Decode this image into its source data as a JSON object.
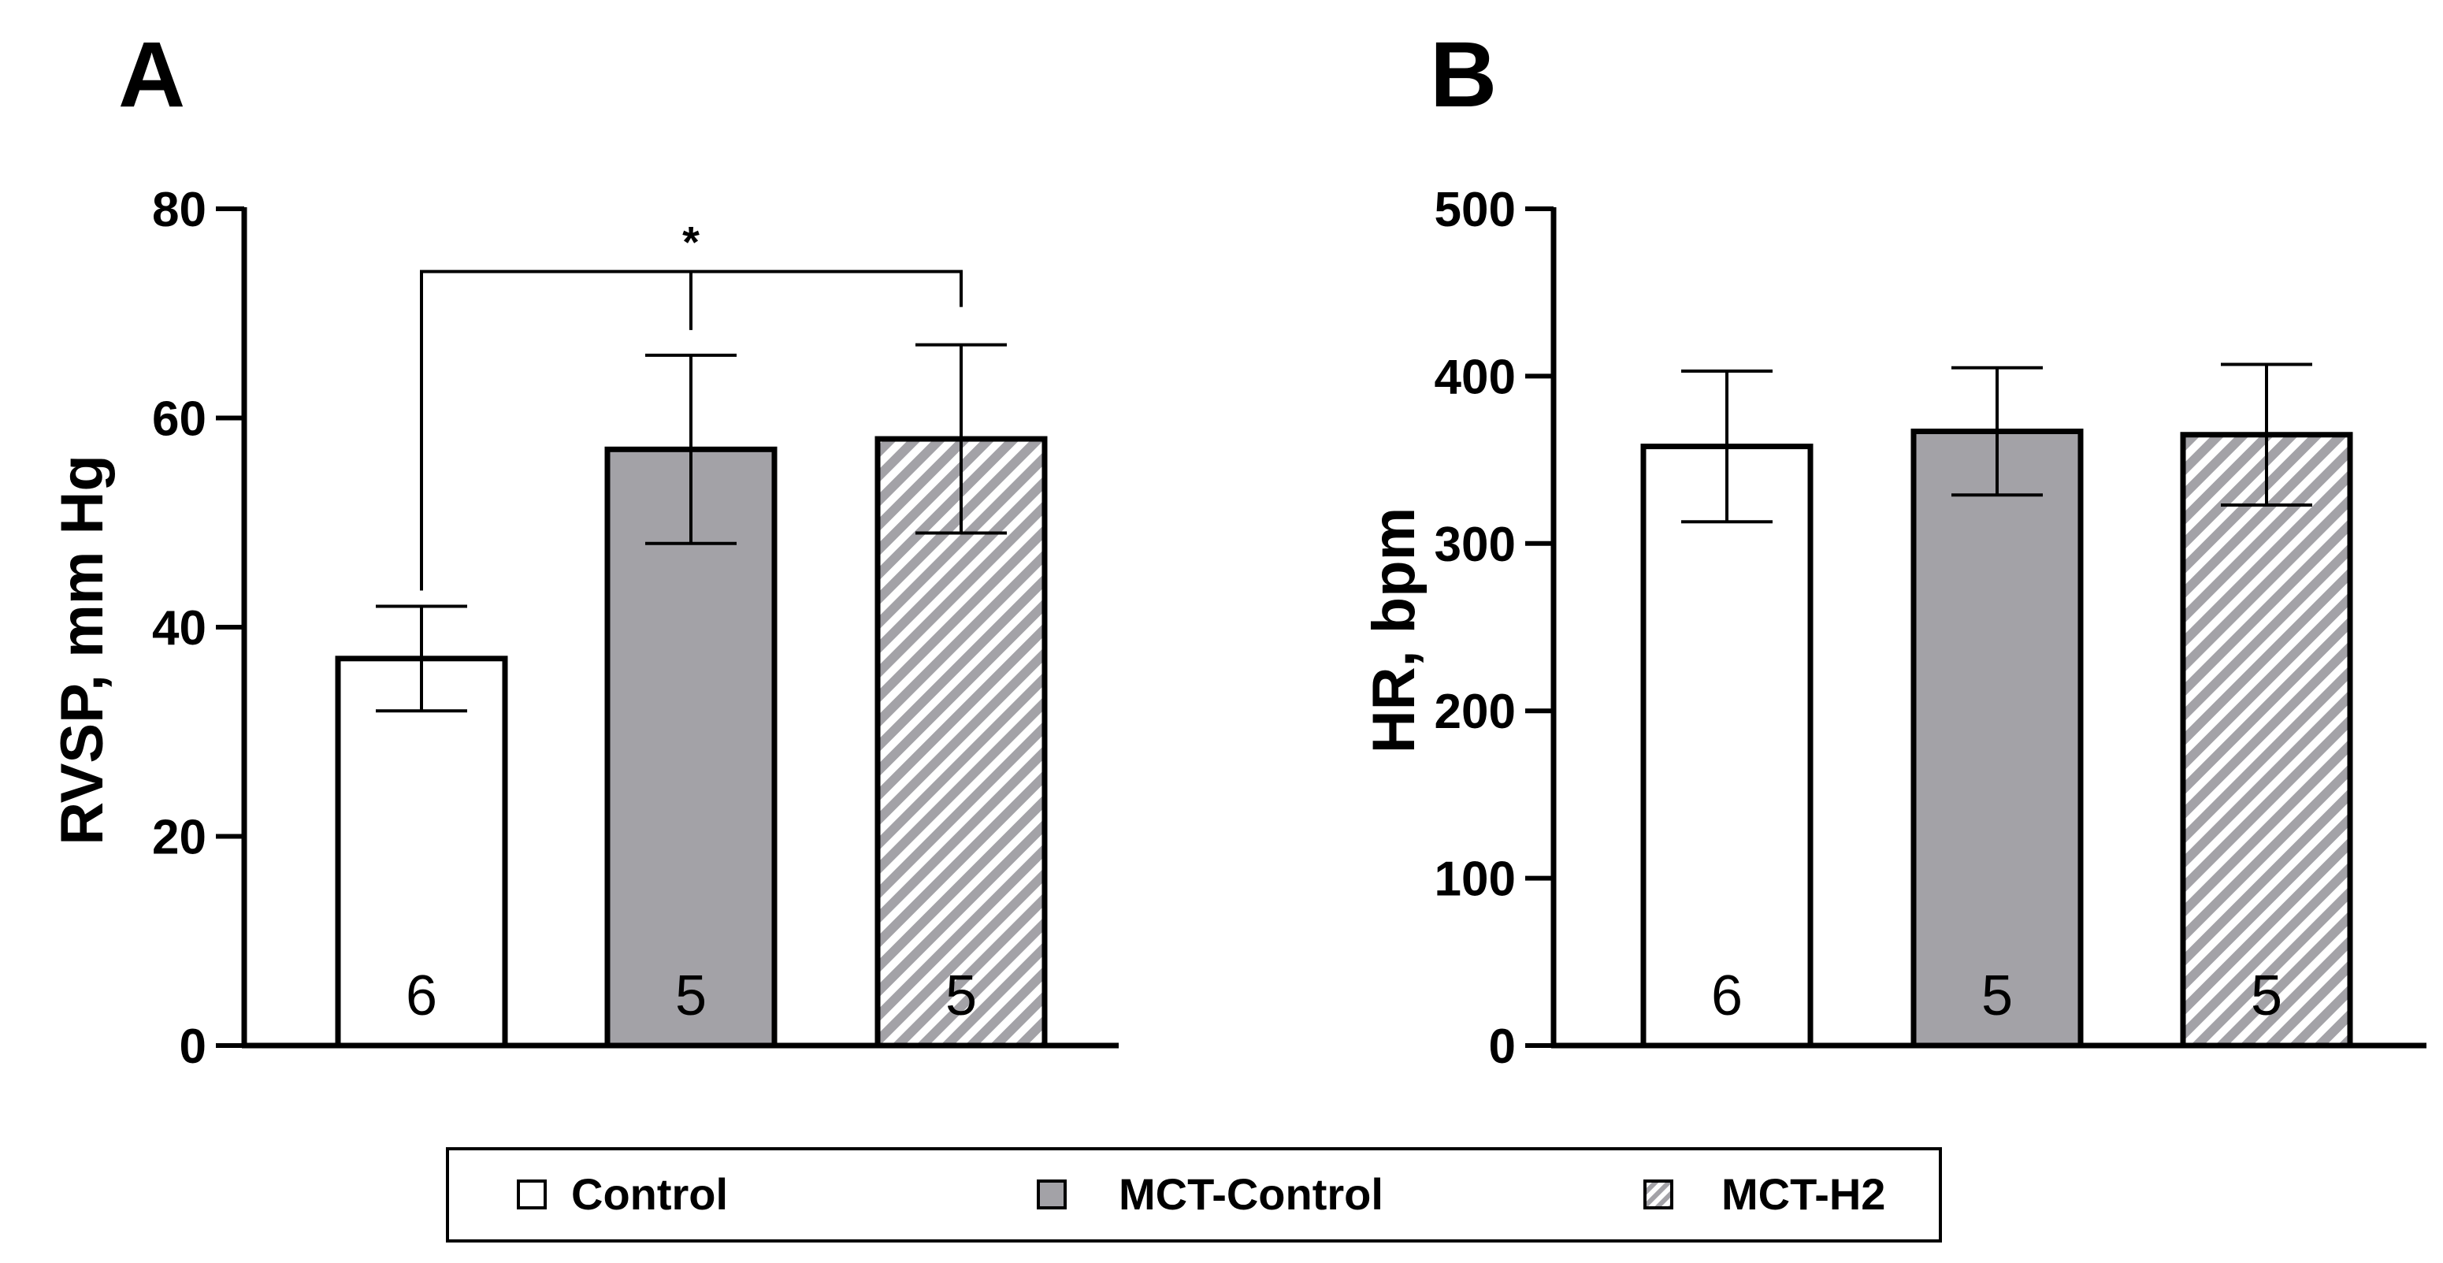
{
  "colors": {
    "control": "#ffffff",
    "mct_control": "#a3a2a7",
    "mct_h2_stripe": "#a3a2a7",
    "axis": "#000000"
  },
  "legend": {
    "items": [
      {
        "label": "Control",
        "fill": "solid-white"
      },
      {
        "label": "MCT-Control",
        "fill": "solid-gray"
      },
      {
        "label": "MCT-H2",
        "fill": "hatched"
      }
    ]
  },
  "chart_data": [
    {
      "panel": "A",
      "type": "bar",
      "categories": [
        "Control",
        "MCT-Control",
        "MCT-H2"
      ],
      "values": [
        37,
        57,
        58
      ],
      "errors": [
        5,
        9,
        9
      ],
      "n": [
        "6",
        "5",
        "5"
      ],
      "ylabel": "RVSP, mm Hg",
      "ylim": [
        0,
        80
      ],
      "yticks": [
        0,
        20,
        40,
        60,
        80
      ],
      "significance": {
        "from": 0,
        "to": 2,
        "mid": 1,
        "label": "*",
        "bracket_y": 74
      }
    },
    {
      "panel": "B",
      "type": "bar",
      "categories": [
        "Control",
        "MCT-Control",
        "MCT-H2"
      ],
      "values": [
        358,
        367,
        365
      ],
      "errors": [
        45,
        38,
        42
      ],
      "n": [
        "6",
        "5",
        "5"
      ],
      "ylabel": "HR, bpm",
      "ylim": [
        0,
        500
      ],
      "yticks": [
        0,
        100,
        200,
        300,
        400,
        500
      ]
    }
  ]
}
